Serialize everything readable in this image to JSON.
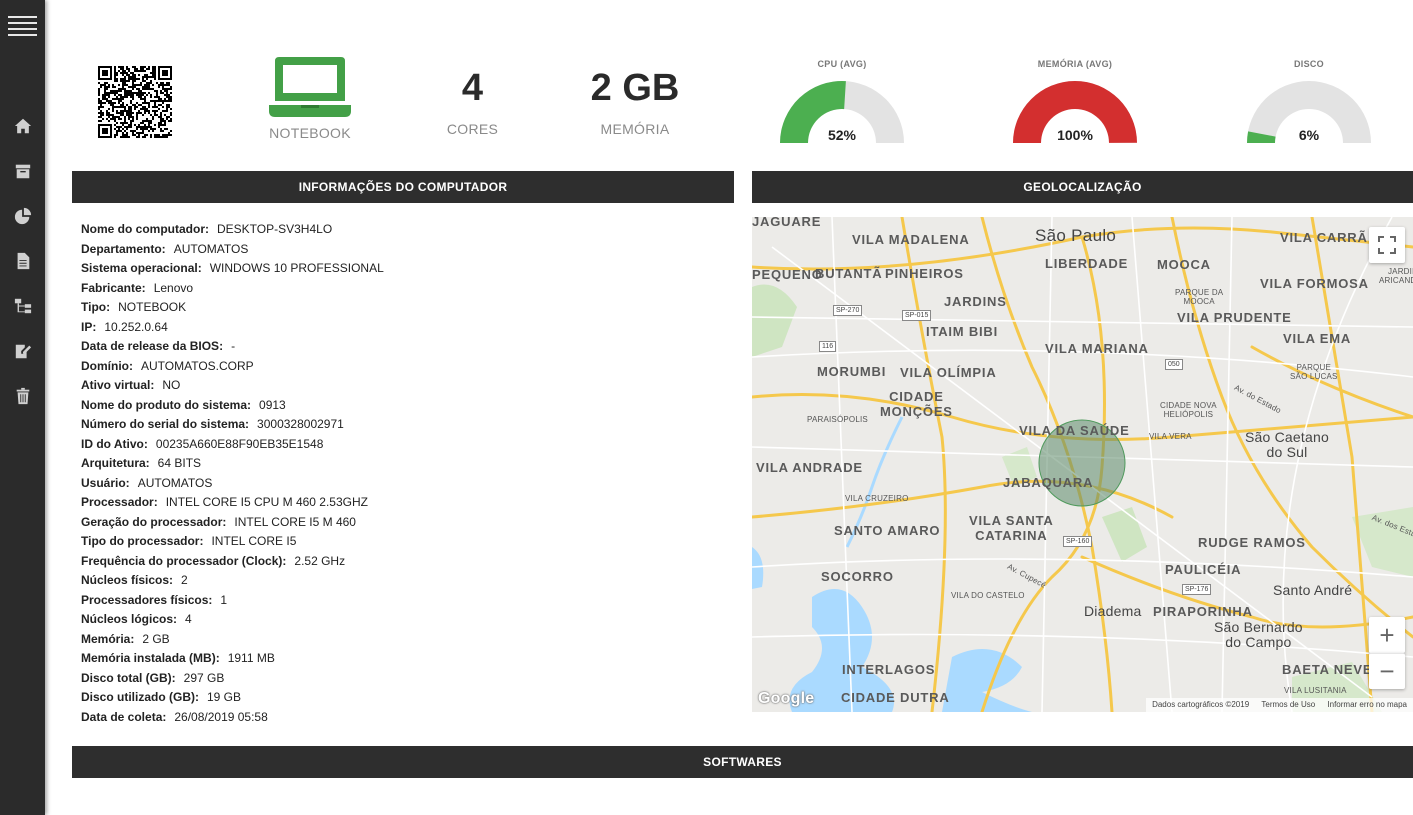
{
  "sidebar": {
    "items": [
      "menu-icon",
      "home-icon",
      "archive-icon",
      "pie-chart-icon",
      "document-icon",
      "hierarchy-icon",
      "edit-document-icon",
      "trash-icon"
    ]
  },
  "summary": {
    "device_type": "NOTEBOOK",
    "cores_value": "4",
    "cores_label": "CORES",
    "memory_value": "2 GB",
    "memory_label": "MEMÓRIA"
  },
  "gauges": [
    {
      "title": "CPU (AVG)",
      "value": 52,
      "label": "52%",
      "color": "#4caf50"
    },
    {
      "title": "MEMÓRIA (AVG)",
      "value": 100,
      "label": "100%",
      "color": "#d32f2f"
    },
    {
      "title": "DISCO",
      "value": 6,
      "label": "6%",
      "color": "#4caf50"
    }
  ],
  "colors": {
    "accent": "#43a047",
    "header_bar": "#2e2e2e",
    "gauge_track": "#e3e3e3"
  },
  "sections": {
    "info_title": "INFORMAÇÕES DO COMPUTADOR",
    "geo_title": "GEOLOCALIZAÇÃO",
    "softwares_title": "SOFTWARES"
  },
  "info": [
    {
      "k": "Nome do computador:",
      "v": "DESKTOP-SV3H4LO"
    },
    {
      "k": "Departamento:",
      "v": "AUTOMATOS"
    },
    {
      "k": "Sistema operacional:",
      "v": "WINDOWS 10 PROFESSIONAL"
    },
    {
      "k": "Fabricante:",
      "v": "Lenovo"
    },
    {
      "k": "Tipo:",
      "v": "NOTEBOOK"
    },
    {
      "k": "IP:",
      "v": "10.252.0.64"
    },
    {
      "k": "Data de release da BIOS:",
      "v": "-"
    },
    {
      "k": "Domínio:",
      "v": "AUTOMATOS.CORP"
    },
    {
      "k": "Ativo virtual:",
      "v": "NO"
    },
    {
      "k": "Nome do produto do sistema:",
      "v": "0913"
    },
    {
      "k": "Número do serial do sistema:",
      "v": "3000328002971"
    },
    {
      "k": "ID do Ativo:",
      "v": "00235A660E88F90EB35E1548"
    },
    {
      "k": "Arquitetura:",
      "v": "64 BITS"
    },
    {
      "k": "Usuário:",
      "v": "AUTOMATOS"
    },
    {
      "k": "Processador:",
      "v": "INTEL CORE I5 CPU M 460 2.53GHZ"
    },
    {
      "k": "Geração do processador:",
      "v": "INTEL CORE I5 M 460"
    },
    {
      "k": "Tipo do processador:",
      "v": "INTEL CORE I5"
    },
    {
      "k": "Frequência do processador (Clock):",
      "v": "2.52 GHz"
    },
    {
      "k": "Núcleos físicos:",
      "v": "2"
    },
    {
      "k": "Processadores físicos:",
      "v": "1"
    },
    {
      "k": "Núcleos lógicos:",
      "v": "4"
    },
    {
      "k": "Memória:",
      "v": "2 GB"
    },
    {
      "k": "Memória instalada (MB):",
      "v": "1911 MB"
    },
    {
      "k": "Disco total (GB):",
      "v": "297 GB"
    },
    {
      "k": "Disco utilizado (GB):",
      "v": "19 GB"
    },
    {
      "k": "Data de coleta:",
      "v": "26/08/2019 05:58"
    }
  ],
  "map": {
    "labels": {
      "sao_paulo": "São Paulo",
      "vila_madalena": "VILA MADALENA",
      "liberdade": "LIBERDADE",
      "mooca": "MOOCA",
      "vila_carrao": "VILA CARRÃ",
      "butanta": "BUTANTÃ",
      "pinheiros": "PINHEIROS",
      "pequeno": "PEQUENO",
      "jaguare": "JAGUARE",
      "jardins": "JARDINS",
      "itaim": "ITAIM BIBI",
      "parque_mooca": "PARQUE DA\nMOOCA",
      "vila_formosa": "VILA FORMOSA",
      "jardim_aricanduva": "JARDIM\nARICANDUV",
      "vila_prudente": "VILA PRUDENTE",
      "vila_mariana": "VILA MARIANA",
      "vila_ema": "VILA EMA",
      "morumbi": "MORUMBI",
      "vila_olimpia": "VILA OLÍMPIA",
      "parque_lucas": "PARQUE\nSÃO LUCAS",
      "cidade_moncoes": "CIDADE\nMONÇÕES",
      "paraisopolis": "PARAISÓPOLIS",
      "cidade_nova_heliopolis": "CIDADE NOVA\nHELIÓPOLIS",
      "av_estado": "Av. do Estado",
      "vila_saude": "VILA DA SAÚDE",
      "vila_vera": "VILA VERA",
      "sao_caetano": "São Caetano\ndo Sul",
      "vila_andrade": "VILA ANDRADE",
      "jabaquara": "JABAQUARA",
      "vila_cruzeiro": "VILA CRUZEIRO",
      "santo_amaro": "SANTO AMARO",
      "vila_santa_catarina": "VILA SANTA\nCATARINA",
      "rudge_ramos": "RUDGE RAMOS",
      "av_estados": "Av. dos Estad",
      "av_cupece": "Av. Cupecê",
      "socorro": "SOCORRO",
      "pauliceia": "PAULICÉIA",
      "santo_andre": "Santo André",
      "vila_castelo": "VILA DO CASTELO",
      "diadema": "Diadema",
      "piraporinha": "PIRAPORINHA",
      "sao_bernardo": "São Bernardo\ndo Campo",
      "interlagos": "INTERLAGOS",
      "baeta_neves": "BAETA NEVES",
      "cidade_dutra": "CIDADE DUTRA",
      "vila_lusitania": "VILA LUSITANIA"
    },
    "shields": [
      "SP-270",
      "SP-015",
      "116",
      "050",
      "SP-160",
      "SP-176"
    ],
    "attribution": {
      "data": "Dados cartográficos ©2019",
      "terms": "Termos de Uso",
      "report": "Informar erro no mapa"
    },
    "logo": "Google",
    "zoom_in": "+",
    "zoom_out": "−"
  }
}
